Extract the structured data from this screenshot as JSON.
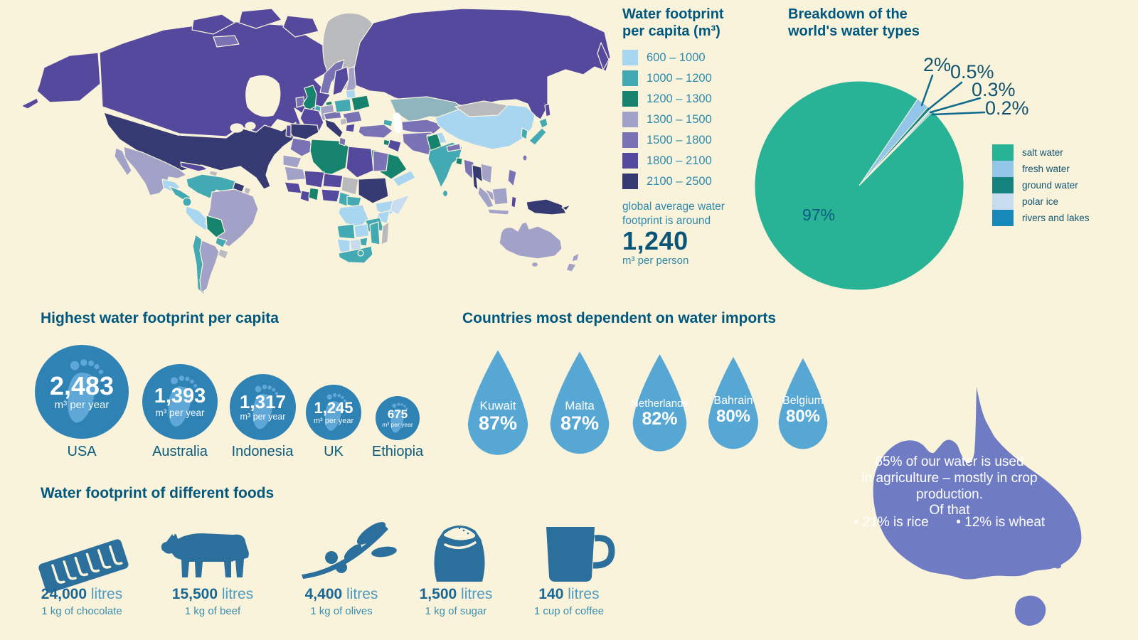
{
  "palette": {
    "background": "#FAF3DB",
    "heading": "#00587E",
    "body_teal": "#2D8AAD",
    "dark_value": "#0A5578",
    "footprint_circle": "#2F82B4",
    "footprint_foot": "#5EA7D7",
    "water_drop": "#57A7D4",
    "australia_fill": "#6F7CC3",
    "food_icon": "#2B6F9C",
    "map_no_data": "#B9BABD"
  },
  "map_section": {
    "legend_title": [
      "Water footprint",
      "per capita (m³)"
    ],
    "legend": [
      {
        "label": "600 – 1000",
        "color": "#A8D5F0"
      },
      {
        "label": "1000 – 1200",
        "color": "#43A9B2"
      },
      {
        "label": "1200 – 1300",
        "color": "#15836E"
      },
      {
        "label": "1300 – 1500",
        "color": "#A2A2C8"
      },
      {
        "label": "1500 – 1800",
        "color": "#7972B5"
      },
      {
        "label": "1800 – 2100",
        "color": "#55499E"
      },
      {
        "label": "2100 – 2500",
        "color": "#353B72"
      }
    ],
    "note": [
      "global average water",
      "footprint is around"
    ],
    "average_value": "1,240",
    "average_unit": "m³ per person"
  },
  "pie_section": {
    "title": [
      "Breakdown of the",
      "world's water types"
    ],
    "slices": [
      {
        "label": "salt water",
        "pct": 97,
        "color": "#28B397",
        "callout": "97%"
      },
      {
        "label": "fresh water",
        "pct": 2,
        "color": "#92C6E8",
        "callout": "2%"
      },
      {
        "label": "ground water",
        "pct": 0.5,
        "color": "#17837E",
        "callout": "0.5%"
      },
      {
        "label": "polar ice",
        "pct": 0.3,
        "color": "#C7DCEF",
        "callout": "0.3%"
      },
      {
        "label": "rivers and lakes",
        "pct": 0.2,
        "color": "#1789B8",
        "callout": "0.2%"
      }
    ]
  },
  "footprint_section": {
    "title": "Highest water footprint per capita",
    "unit": "m³ per year",
    "items": [
      {
        "country": "USA",
        "value": "2,483"
      },
      {
        "country": "Australia",
        "value": "1,393"
      },
      {
        "country": "Indonesia",
        "value": "1,317"
      },
      {
        "country": "UK",
        "value": "1,245"
      },
      {
        "country": "Ethiopia",
        "value": "675"
      }
    ]
  },
  "imports_section": {
    "title": "Countries most dependent on water imports",
    "items": [
      {
        "country": "Kuwait",
        "pct": "87%"
      },
      {
        "country": "Malta",
        "pct": "87%"
      },
      {
        "country": "Netherlands",
        "pct": "82%"
      },
      {
        "country": "Bahrain",
        "pct": "80%"
      },
      {
        "country": "Belgium",
        "pct": "80%"
      }
    ]
  },
  "australia_section": {
    "lines": [
      "65% of our water is used",
      "in agriculture – mostly in crop",
      "production."
    ],
    "of_that": "Of that",
    "bullets": [
      "• 21% is rice",
      "• 12% is wheat"
    ]
  },
  "foods_section": {
    "title": "Water footprint of different foods",
    "items": [
      {
        "value": "24,000",
        "unit": "litres",
        "desc": "1 kg of chocolate",
        "icon": "chocolate-icon"
      },
      {
        "value": "15,500",
        "unit": "litres",
        "desc": "1 kg of beef",
        "icon": "cow-icon"
      },
      {
        "value": "4,400",
        "unit": "litres",
        "desc": "1 kg of olives",
        "icon": "olive-branch-icon"
      },
      {
        "value": "1,500",
        "unit": "litres",
        "desc": "1 kg of sugar",
        "icon": "sugar-sack-icon"
      },
      {
        "value": "140",
        "unit": "litres",
        "desc": "1 cup of coffee",
        "icon": "coffee-mug-icon"
      }
    ]
  },
  "chart_data": [
    {
      "type": "heatmap",
      "subtype": "world-choropleth",
      "title": "Water footprint per capita (m³)",
      "bins": [
        "600 – 1000",
        "1000 – 1200",
        "1200 – 1300",
        "1300 – 1500",
        "1500 – 1800",
        "1800 – 2100",
        "2100 – 2500"
      ],
      "bin_colors": [
        "#A8D5F0",
        "#43A9B2",
        "#15836E",
        "#A2A2C8",
        "#7972B5",
        "#55499E",
        "#353B72"
      ],
      "note": "global average water footprint is around 1,240 m³ per person",
      "legend_position": "right"
    },
    {
      "type": "pie",
      "title": "Breakdown of the world's water types",
      "labels": [
        "salt water",
        "fresh water",
        "ground water",
        "polar ice",
        "rivers and lakes"
      ],
      "values": [
        97,
        2,
        0.5,
        0.3,
        0.2
      ],
      "unit": "%",
      "legend_position": "right"
    },
    {
      "type": "bar",
      "subtype": "pictogram-circles",
      "title": "Highest water footprint per capita",
      "categories": [
        "USA",
        "Australia",
        "Indonesia",
        "UK",
        "Ethiopia"
      ],
      "values": [
        2483,
        1393,
        1317,
        1245,
        675
      ],
      "ylabel": "m³ per year"
    },
    {
      "type": "bar",
      "subtype": "pictogram-drops",
      "title": "Countries most dependent on water imports",
      "categories": [
        "Kuwait",
        "Malta",
        "Netherlands",
        "Bahrain",
        "Belgium"
      ],
      "values": [
        87,
        87,
        82,
        80,
        80
      ],
      "unit": "%"
    },
    {
      "type": "bar",
      "subtype": "pictogram-foods",
      "title": "Water footprint of different foods",
      "categories": [
        "1 kg of chocolate",
        "1 kg of beef",
        "1 kg of olives",
        "1 kg of sugar",
        "1 cup of coffee"
      ],
      "values": [
        24000,
        15500,
        4400,
        1500,
        140
      ],
      "ylabel": "litres"
    },
    {
      "type": "table",
      "title": "Water use in agriculture (Australia note)",
      "rows": [
        [
          "Share of water used in agriculture",
          "65%"
        ],
        [
          "of that: rice",
          "21%"
        ],
        [
          "of that: wheat",
          "12%"
        ]
      ]
    }
  ]
}
